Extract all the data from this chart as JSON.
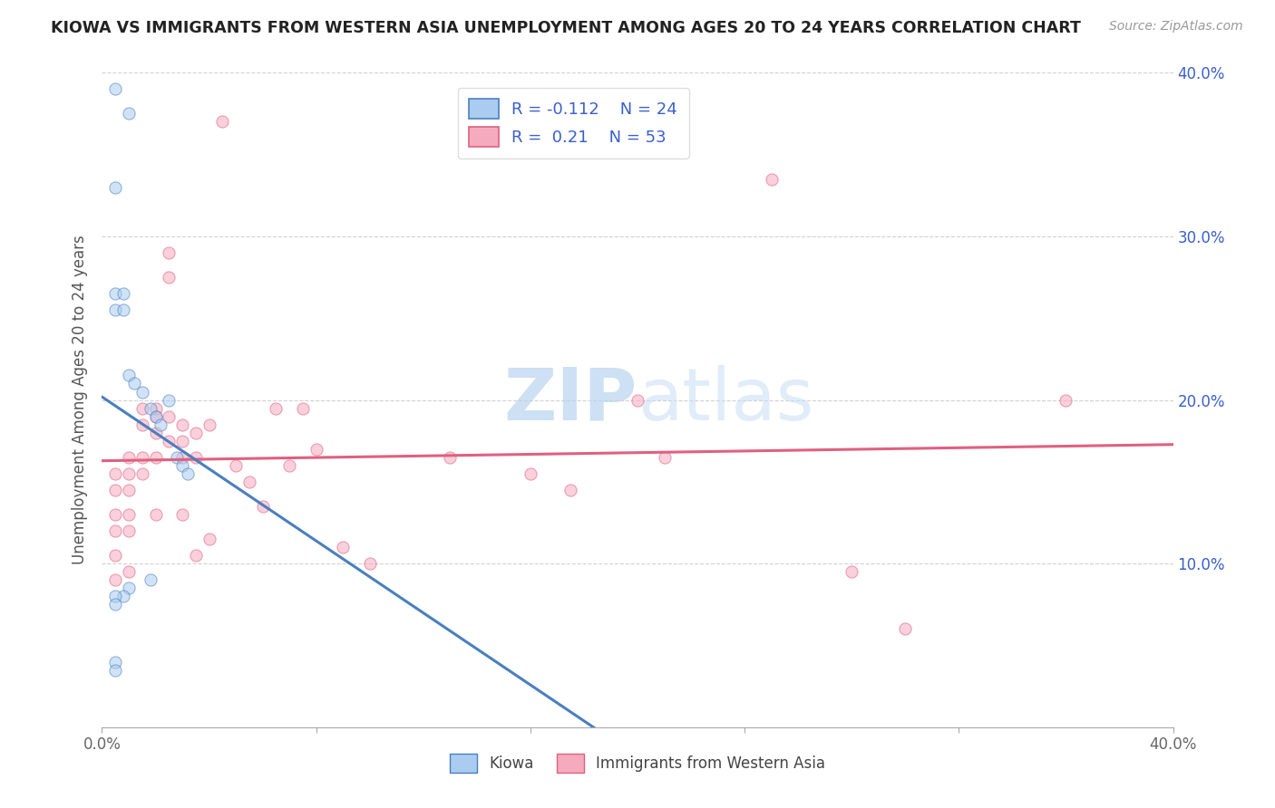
{
  "title": "KIOWA VS IMMIGRANTS FROM WESTERN ASIA UNEMPLOYMENT AMONG AGES 20 TO 24 YEARS CORRELATION CHART",
  "source": "Source: ZipAtlas.com",
  "ylabel": "Unemployment Among Ages 20 to 24 years",
  "xlim": [
    0.0,
    0.4
  ],
  "ylim": [
    0.0,
    0.4
  ],
  "kiowa_x": [
    0.005,
    0.01,
    0.005,
    0.005,
    0.005,
    0.008,
    0.008,
    0.01,
    0.012,
    0.015,
    0.018,
    0.02,
    0.022,
    0.025,
    0.028,
    0.03,
    0.032,
    0.018,
    0.01,
    0.008,
    0.005,
    0.005,
    0.005,
    0.005
  ],
  "kiowa_y": [
    0.39,
    0.375,
    0.33,
    0.265,
    0.255,
    0.265,
    0.255,
    0.215,
    0.21,
    0.205,
    0.195,
    0.19,
    0.185,
    0.2,
    0.165,
    0.16,
    0.155,
    0.09,
    0.085,
    0.08,
    0.08,
    0.075,
    0.04,
    0.035
  ],
  "immigrants_x": [
    0.005,
    0.005,
    0.005,
    0.005,
    0.005,
    0.005,
    0.01,
    0.01,
    0.01,
    0.01,
    0.01,
    0.01,
    0.015,
    0.015,
    0.015,
    0.015,
    0.02,
    0.02,
    0.02,
    0.02,
    0.02,
    0.025,
    0.025,
    0.025,
    0.025,
    0.03,
    0.03,
    0.03,
    0.03,
    0.035,
    0.035,
    0.035,
    0.04,
    0.04,
    0.045,
    0.05,
    0.055,
    0.06,
    0.065,
    0.07,
    0.075,
    0.08,
    0.09,
    0.1,
    0.13,
    0.16,
    0.175,
    0.2,
    0.21,
    0.25,
    0.28,
    0.3,
    0.36
  ],
  "immigrants_y": [
    0.155,
    0.145,
    0.13,
    0.12,
    0.105,
    0.09,
    0.165,
    0.155,
    0.145,
    0.13,
    0.12,
    0.095,
    0.195,
    0.185,
    0.165,
    0.155,
    0.195,
    0.19,
    0.18,
    0.165,
    0.13,
    0.29,
    0.275,
    0.19,
    0.175,
    0.185,
    0.175,
    0.165,
    0.13,
    0.18,
    0.165,
    0.105,
    0.185,
    0.115,
    0.37,
    0.16,
    0.15,
    0.135,
    0.195,
    0.16,
    0.195,
    0.17,
    0.11,
    0.1,
    0.165,
    0.155,
    0.145,
    0.2,
    0.165,
    0.335,
    0.095,
    0.06,
    0.2
  ],
  "kiowa_color": "#aaccf0",
  "immigrants_color": "#f5aabe",
  "kiowa_trend_color": "#4a7fc0",
  "immigrants_trend_color": "#e06080",
  "kiowa_R": -0.112,
  "kiowa_N": 24,
  "immigrants_R": 0.21,
  "immigrants_N": 53,
  "legend_text_color": "#3a5fcd",
  "background_color": "#ffffff",
  "watermark_zip": "ZIP",
  "watermark_atlas": "atlas",
  "marker_size": 90,
  "marker_alpha": 0.55,
  "trend_linewidth": 2.2,
  "kiowa_trend_start_x": 0.0,
  "kiowa_trend_end_solid_x": 0.3,
  "kiowa_trend_end_dashed_x": 0.4,
  "immigrants_trend_start_x": 0.0,
  "immigrants_trend_end_x": 0.4
}
